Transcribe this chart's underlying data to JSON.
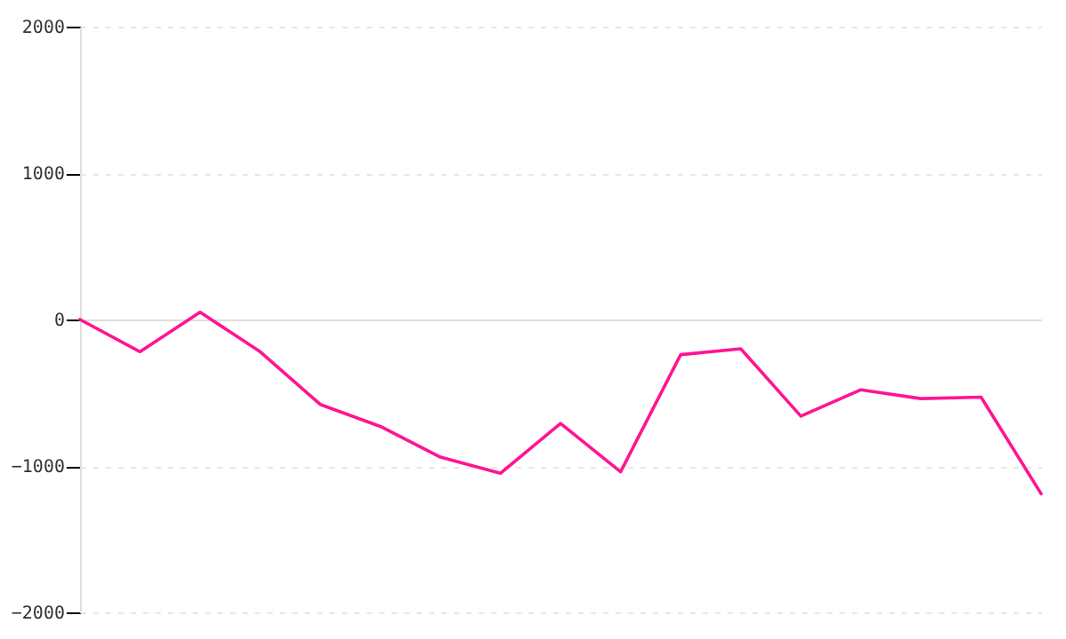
{
  "chart_data": {
    "type": "line",
    "categories": [
      null,
      null,
      null,
      null,
      null,
      null,
      null,
      null,
      null,
      null,
      null,
      null,
      null,
      null,
      null,
      null,
      null
    ],
    "series": [
      {
        "color": "#ff1493",
        "values": [
          0,
          -220,
          50,
          -220,
          -580,
          -730,
          -940,
          -1050,
          -710,
          -1040,
          -240,
          -200,
          -660,
          -480,
          -540,
          -530,
          -1190
        ]
      }
    ],
    "ylim": [
      -2000,
      2000
    ],
    "yticks": [
      -2000,
      -1000,
      0,
      1000,
      2000
    ],
    "grid": "y",
    "tick_labels": "y",
    "marker": "none",
    "line_style": "solid"
  }
}
